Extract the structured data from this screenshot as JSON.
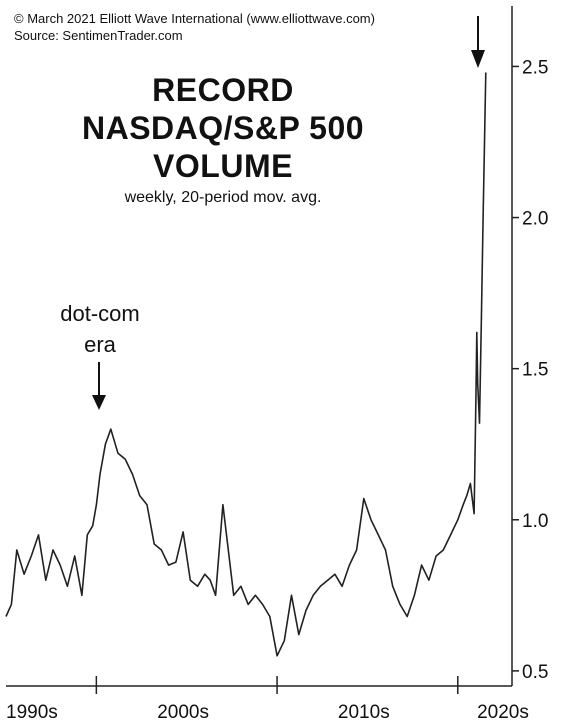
{
  "header": {
    "credit_line": "© March 2021 Elliott Wave International (www.elliottwave.com)",
    "source_line": "Source: SentimenTrader.com"
  },
  "annotation": {
    "line1": "dot-com",
    "line2": "era"
  },
  "chart_data": {
    "type": "line",
    "title_lines": [
      "RECORD",
      "NASDAQ/S&P 500",
      "VOLUME"
    ],
    "subtitle": "weekly, 20-period mov. avg.",
    "xlabel": "",
    "ylabel": "",
    "x_tick_labels": [
      "1990s",
      "2000s",
      "2010s",
      "2020s"
    ],
    "x_tick_years": [
      2000,
      2010,
      2020
    ],
    "x_label_positions": [
      1995,
      2004.8,
      2014.8,
      2022.5
    ],
    "xlim": [
      1995,
      2023
    ],
    "ylim": [
      0.45,
      2.7
    ],
    "y_ticks": [
      0.5,
      1.0,
      1.5,
      2.0,
      2.5
    ],
    "y_tick_labels": [
      "0.5",
      "1.0",
      "1.5",
      "2.0",
      "2.5"
    ],
    "grid": false,
    "line_color": "#222222",
    "series": [
      {
        "x": [
          1995.0,
          1995.3,
          1995.6,
          1996.0,
          1996.4,
          1996.8,
          1997.2,
          1997.6,
          1998.0,
          1998.4,
          1998.8,
          1999.2,
          1999.5,
          1999.8,
          2000.0,
          2000.2,
          2000.5,
          2000.8,
          2001.2,
          2001.6,
          2002.0,
          2002.4,
          2002.8,
          2003.2,
          2003.6,
          2004.0,
          2004.4,
          2004.8,
          2005.2,
          2005.6,
          2006.0,
          2006.3,
          2006.6,
          2007.0,
          2007.3,
          2007.6,
          2008.0,
          2008.4,
          2008.8,
          2009.2,
          2009.6,
          2010.0,
          2010.4,
          2010.8,
          2011.2,
          2011.6,
          2012.0,
          2012.4,
          2012.8,
          2013.2,
          2013.6,
          2014.0,
          2014.4,
          2014.8,
          2015.2,
          2015.6,
          2016.0,
          2016.4,
          2016.8,
          2017.2,
          2017.6,
          2018.0,
          2018.4,
          2018.8,
          2019.2,
          2019.6,
          2020.0,
          2020.3,
          2020.5,
          2020.7,
          2020.9,
          2021.0,
          2021.05,
          2021.1,
          2021.2,
          2021.3,
          2021.4,
          2021.55
        ],
        "values": [
          0.68,
          0.72,
          0.9,
          0.82,
          0.88,
          0.95,
          0.8,
          0.9,
          0.85,
          0.78,
          0.88,
          0.75,
          0.95,
          0.98,
          1.05,
          1.15,
          1.25,
          1.3,
          1.22,
          1.2,
          1.15,
          1.08,
          1.05,
          0.92,
          0.9,
          0.85,
          0.86,
          0.96,
          0.8,
          0.78,
          0.82,
          0.8,
          0.75,
          1.05,
          0.9,
          0.75,
          0.78,
          0.72,
          0.75,
          0.72,
          0.68,
          0.55,
          0.6,
          0.75,
          0.62,
          0.7,
          0.75,
          0.78,
          0.8,
          0.82,
          0.78,
          0.85,
          0.9,
          1.07,
          1.0,
          0.95,
          0.9,
          0.78,
          0.72,
          0.68,
          0.75,
          0.85,
          0.8,
          0.88,
          0.9,
          0.95,
          1.0,
          1.05,
          1.08,
          1.12,
          1.02,
          1.4,
          1.62,
          1.45,
          1.32,
          1.65,
          2.0,
          2.48
        ]
      }
    ]
  }
}
